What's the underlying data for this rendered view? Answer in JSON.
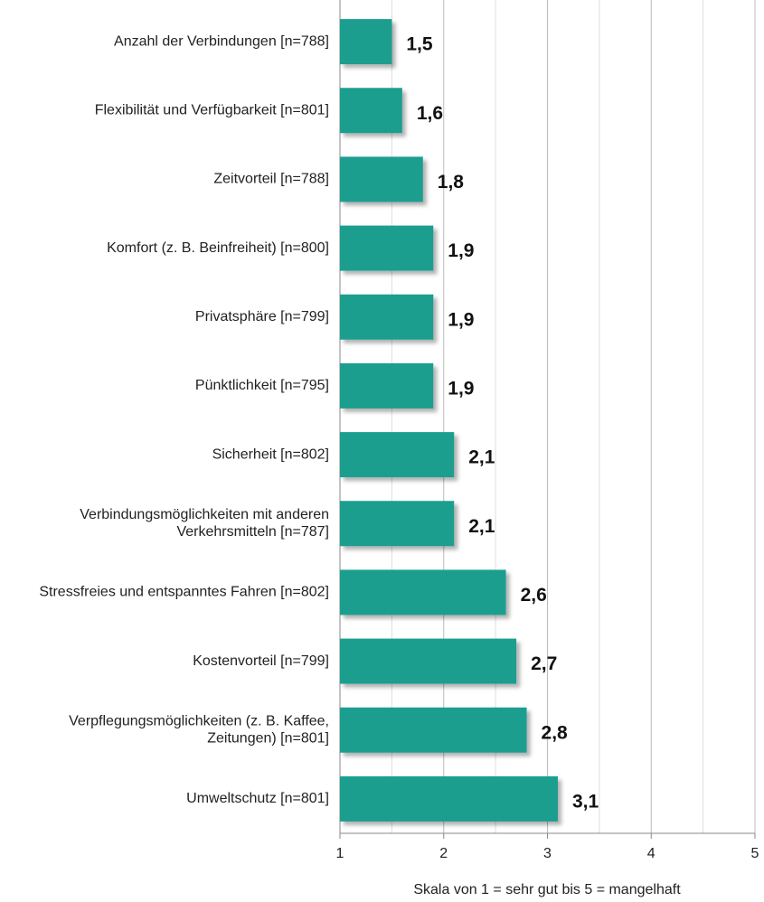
{
  "chart_data": {
    "type": "hbar",
    "categories": [
      [
        "Anzahl der Verbindungen [n=788]"
      ],
      [
        "Flexibilität und Verfügbarkeit [n=801]"
      ],
      [
        "Zeitvorteil [n=788]"
      ],
      [
        "Komfort (z. B. Beinfreiheit) [n=800]"
      ],
      [
        "Privatsphäre [n=799]"
      ],
      [
        "Pünktlichkeit [n=795]"
      ],
      [
        "Sicherheit [n=802]"
      ],
      [
        "Verbindungsmöglichkeiten mit anderen",
        "Verkehrsmitteln [n=787]"
      ],
      [
        "Stressfreies und entspanntes Fahren [n=802]"
      ],
      [
        "Kostenvorteil [n=799]"
      ],
      [
        "Verpflegungsmöglichkeiten (z. B. Kaffee,",
        "Zeitungen) [n=801]"
      ],
      [
        "Umweltschutz [n=801]"
      ]
    ],
    "values": [
      1.5,
      1.6,
      1.8,
      1.9,
      1.9,
      1.9,
      2.1,
      2.1,
      2.6,
      2.7,
      2.8,
      3.1
    ],
    "value_labels": [
      "1,5",
      "1,6",
      "1,8",
      "1,9",
      "1,9",
      "1,9",
      "2,1",
      "2,1",
      "2,6",
      "2,7",
      "2,8",
      "3,1"
    ],
    "color": "#1a9e8f",
    "xlim": [
      1,
      5
    ],
    "xticks": [
      1,
      2,
      3,
      4,
      5
    ],
    "minor_xticks": [
      1.5,
      2.5,
      3.5,
      4.5
    ],
    "grid": true,
    "xlabel": "Skala von 1 = sehr gut bis 5 = mangelhaft"
  }
}
